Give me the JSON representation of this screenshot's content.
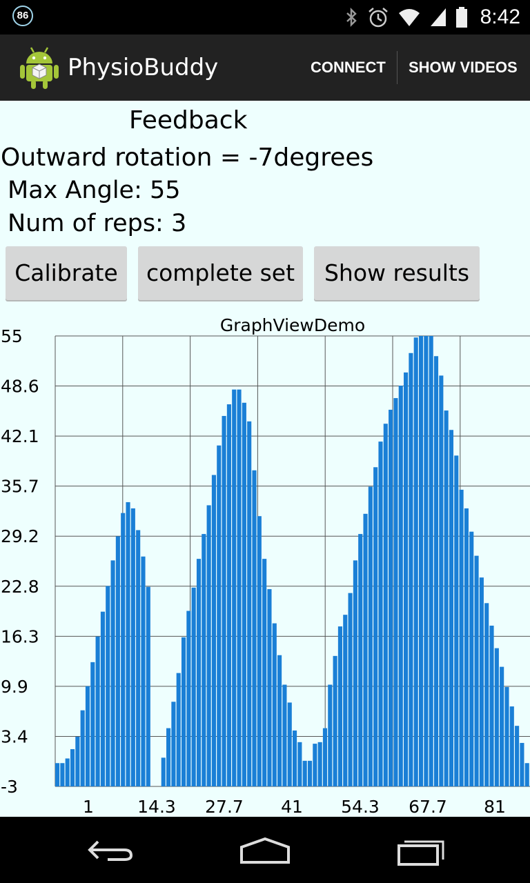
{
  "status_bar": {
    "notification_count": "86",
    "time": "8:42",
    "icons": [
      "bluetooth-icon",
      "alarm-icon",
      "wifi-icon",
      "signal-icon",
      "battery-icon"
    ]
  },
  "action_bar": {
    "title": "PhysioBuddy",
    "connect_label": "CONNECT",
    "show_videos_label": "SHOW VIDEOS"
  },
  "feedback": {
    "heading": "Feedback",
    "rotation": "Outward rotation = -7degrees",
    "max_angle": "Max Angle: 55",
    "reps": "Num of reps: 3"
  },
  "buttons": {
    "calibrate": "Calibrate",
    "complete_set": "complete set",
    "show_results": "Show results"
  },
  "chart_data": {
    "type": "bar",
    "title": "GraphViewDemo",
    "xlabel": "",
    "ylabel": "",
    "x_tick_labels": [
      "1",
      "14.3",
      "27.7",
      "41",
      "54.3",
      "67.7",
      "81"
    ],
    "y_tick_labels": [
      "55",
      "48.6",
      "42.1",
      "35.7",
      "29.2",
      "22.8",
      "16.3",
      "9.9",
      "3.4",
      "-3"
    ],
    "ylim": [
      -3,
      55
    ],
    "grid": true,
    "color": "#1a7fd6",
    "values": [
      0,
      0,
      0.6,
      1.8,
      3.4,
      6.8,
      9.9,
      13,
      16.3,
      19.5,
      22.8,
      26.1,
      29.2,
      32.2,
      33.6,
      32.8,
      30,
      26.6,
      22.7,
      -3,
      -3,
      0.7,
      4.5,
      7.9,
      11.6,
      16.2,
      19.6,
      22.6,
      26.3,
      29.5,
      33.2,
      37.1,
      40.9,
      44.7,
      46.2,
      48.1,
      48.1,
      46.4,
      44,
      37.7,
      31.8,
      26.3,
      22.4,
      18,
      13.9,
      10.1,
      7.8,
      4.2,
      2.7,
      0.3,
      0.3,
      2.5,
      2.7,
      4.5,
      10.1,
      13.8,
      17.6,
      19.1,
      21.9,
      26.1,
      29.5,
      32.1,
      35.6,
      38.1,
      41.4,
      43.7,
      45.5,
      47,
      48.6,
      50.3,
      52.8,
      54.8,
      55,
      55,
      55,
      52.4,
      49.9,
      45.4,
      42.9,
      39.6,
      35.2,
      32.8,
      29.8,
      26.7,
      23.9,
      20.6,
      17.7,
      14.8,
      12.4,
      9.8,
      7.3,
      4.8,
      2.6,
      0
    ]
  }
}
